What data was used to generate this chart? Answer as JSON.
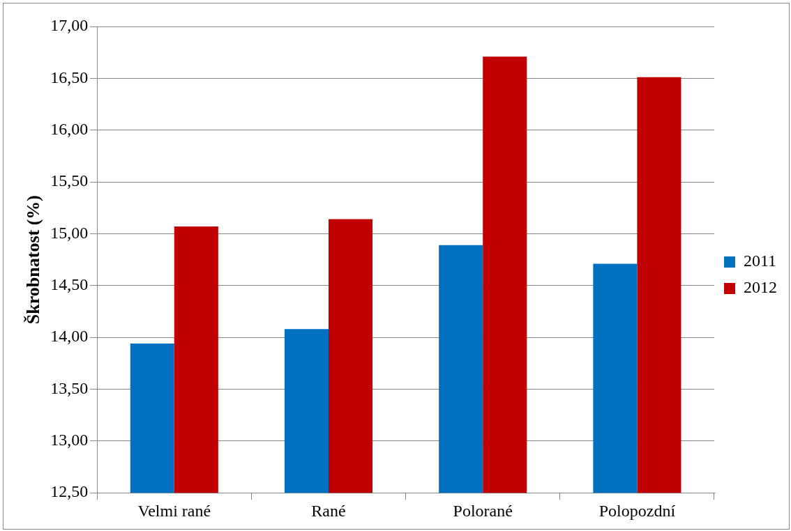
{
  "chart_data": {
    "type": "bar",
    "ylabel": "Škrobnatost (%)",
    "categories": [
      "Velmi rané",
      "Rané",
      "Polorané",
      "Polopozdní"
    ],
    "series": [
      {
        "name": "2011",
        "color": "#0070c0",
        "values": [
          13.94,
          14.08,
          14.89,
          14.71
        ]
      },
      {
        "name": "2012",
        "color": "#c00000",
        "values": [
          15.07,
          15.14,
          16.71,
          16.51
        ]
      }
    ],
    "ylim": [
      12.5,
      17
    ],
    "yticks": [
      {
        "value": 12.5,
        "label": "12,50"
      },
      {
        "value": 13,
        "label": "13,00"
      },
      {
        "value": 13.5,
        "label": "13,50"
      },
      {
        "value": 14,
        "label": "14,00"
      },
      {
        "value": 14.5,
        "label": "14,50"
      },
      {
        "value": 15,
        "label": "15,00"
      },
      {
        "value": 15.5,
        "label": "15,50"
      },
      {
        "value": 16,
        "label": "16,00"
      },
      {
        "value": 16.5,
        "label": "16,50"
      },
      {
        "value": 17,
        "label": "17,00"
      }
    ],
    "grid": "y",
    "legend": "right"
  }
}
